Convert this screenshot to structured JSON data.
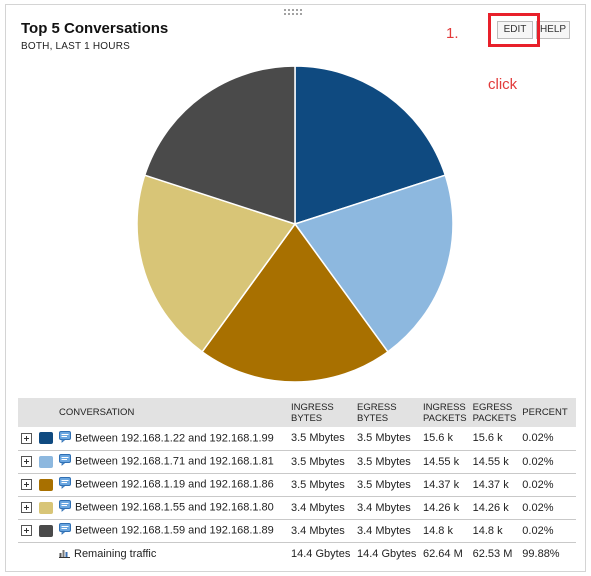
{
  "widget": {
    "title": "Top 5 Conversations",
    "subtitle": "BOTH, LAST 1 HOURS",
    "edit_label": "EDIT",
    "help_label": "HELP"
  },
  "annotations": {
    "step": "1.",
    "click": "click"
  },
  "colors": {
    "highlight": "#e8202a",
    "annotation_text": "#e23a3a"
  },
  "chart_data": {
    "type": "pie",
    "slices": [
      {
        "label": "Between 192.168.1.22 and 192.168.1.99",
        "value": 0.02,
        "color": "#0f4a80"
      },
      {
        "label": "Between 192.168.1.71 and 192.168.1.81",
        "value": 0.02,
        "color": "#8db8df"
      },
      {
        "label": "Between 192.168.1.19 and 192.168.1.86",
        "value": 0.02,
        "color": "#a87000"
      },
      {
        "label": "Between 192.168.1.55 and 192.168.1.80",
        "value": 0.02,
        "color": "#d8c577"
      },
      {
        "label": "Between 192.168.1.59 and 192.168.1.89",
        "value": 0.02,
        "color": "#4a4a4a"
      }
    ]
  },
  "table": {
    "headers": {
      "conversation": "CONVERSATION",
      "ingress_bytes_1": "INGRESS",
      "ingress_bytes_2": "BYTES",
      "egress_bytes_1": "EGRESS",
      "egress_bytes_2": "BYTES",
      "ingress_packets_1": "INGRESS",
      "ingress_packets_2": "PACKETS",
      "egress_packets_1": "EGRESS",
      "egress_packets_2": "PACKETS",
      "percent": "PERCENT"
    },
    "rows": [
      {
        "conversation": "Between 192.168.1.22 and 192.168.1.99",
        "ingress_bytes": "3.5 Mbytes",
        "egress_bytes": "3.5 Mbytes",
        "ingress_packets": "15.6 k",
        "egress_packets": "15.6 k",
        "percent": "0.02%",
        "color": "#0f4a80"
      },
      {
        "conversation": "Between 192.168.1.71 and 192.168.1.81",
        "ingress_bytes": "3.5 Mbytes",
        "egress_bytes": "3.5 Mbytes",
        "ingress_packets": "14.55 k",
        "egress_packets": "14.55 k",
        "percent": "0.02%",
        "color": "#8db8df"
      },
      {
        "conversation": "Between 192.168.1.19 and 192.168.1.86",
        "ingress_bytes": "3.5 Mbytes",
        "egress_bytes": "3.5 Mbytes",
        "ingress_packets": "14.37 k",
        "egress_packets": "14.37 k",
        "percent": "0.02%",
        "color": "#a87000"
      },
      {
        "conversation": "Between 192.168.1.55 and 192.168.1.80",
        "ingress_bytes": "3.4 Mbytes",
        "egress_bytes": "3.4 Mbytes",
        "ingress_packets": "14.26 k",
        "egress_packets": "14.26 k",
        "percent": "0.02%",
        "color": "#d8c577"
      },
      {
        "conversation": "Between 192.168.1.59 and 192.168.1.89",
        "ingress_bytes": "3.4 Mbytes",
        "egress_bytes": "3.4 Mbytes",
        "ingress_packets": "14.8 k",
        "egress_packets": "14.8 k",
        "percent": "0.02%",
        "color": "#4a4a4a"
      }
    ],
    "remaining": {
      "label": "Remaining traffic",
      "ingress_bytes": "14.4 Gbytes",
      "egress_bytes": "14.4 Gbytes",
      "ingress_packets": "62.64 M",
      "egress_packets": "62.53 M",
      "percent": "99.88%"
    }
  }
}
